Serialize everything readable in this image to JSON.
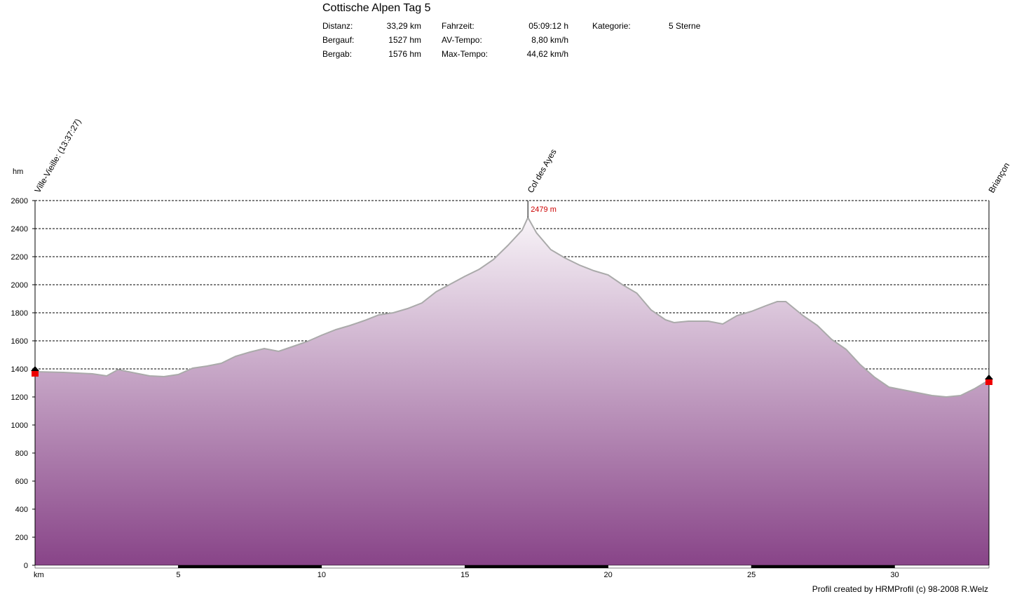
{
  "header": {
    "title": "Cottische Alpen Tag 5",
    "stats": [
      {
        "label": "Distanz:",
        "value": "33,29 km"
      },
      {
        "label": "Bergauf:",
        "value": "1527 hm"
      },
      {
        "label": "Bergab:",
        "value": "1576 hm"
      },
      {
        "label": "Fahrzeit:",
        "value": "05:09:12 h"
      },
      {
        "label": "AV-Tempo:",
        "value": "8,80 km/h"
      },
      {
        "label": "Max-Tempo:",
        "value": "44,62 km/h"
      },
      {
        "label": "Kategorie:",
        "value": "5 Sterne"
      }
    ]
  },
  "footer": {
    "credit": "Profil created by HRMProfil (c) 98-2008 R.Welz"
  },
  "chart_data": {
    "type": "area",
    "ylabel": "hm",
    "xlabel": "km",
    "xlim": [
      0,
      33.29
    ],
    "ylim": [
      0,
      2600
    ],
    "x_ticks": [
      5,
      10,
      15,
      20,
      25,
      30
    ],
    "y_ticks": [
      0,
      200,
      400,
      600,
      800,
      1000,
      1200,
      1400,
      1600,
      1800,
      2000,
      2200,
      2400,
      2600
    ],
    "grid": true,
    "fill_gradient": [
      "#f8f4f8",
      "#884488"
    ],
    "line_color": "#aaaaaa",
    "waypoints": [
      {
        "km": 0,
        "label": "Ville-Vieille: (13:37:27)"
      },
      {
        "km": 17.2,
        "label": "Col des Ayes"
      },
      {
        "km": 33.29,
        "label": "Briançon"
      }
    ],
    "peak": {
      "km": 17.2,
      "label": "2479 m"
    },
    "x": [
      0,
      1,
      2,
      2.5,
      2.9,
      3.5,
      4,
      4.5,
      5,
      5.5,
      6,
      6.5,
      7,
      7.5,
      8,
      8.5,
      9,
      9.5,
      10,
      10.5,
      11,
      11.5,
      12,
      12.5,
      13,
      13.5,
      14,
      14.5,
      15,
      15.5,
      16,
      16.5,
      17,
      17.2,
      17.5,
      18,
      18.5,
      19,
      19.5,
      20,
      20.5,
      21,
      21.5,
      22,
      22.3,
      22.8,
      23.5,
      24,
      24.5,
      25,
      25.5,
      25.9,
      26.2,
      26.8,
      27.3,
      27.8,
      28.3,
      28.8,
      29.3,
      29.8,
      30.3,
      30.8,
      31.3,
      31.8,
      32.3,
      32.8,
      33.29
    ],
    "y": [
      1380,
      1375,
      1365,
      1350,
      1395,
      1370,
      1350,
      1345,
      1360,
      1405,
      1420,
      1440,
      1490,
      1520,
      1545,
      1525,
      1560,
      1595,
      1640,
      1680,
      1710,
      1745,
      1785,
      1800,
      1830,
      1870,
      1950,
      2005,
      2060,
      2110,
      2180,
      2280,
      2390,
      2479,
      2370,
      2250,
      2190,
      2140,
      2100,
      2070,
      2000,
      1940,
      1820,
      1750,
      1730,
      1740,
      1740,
      1720,
      1780,
      1810,
      1850,
      1880,
      1880,
      1780,
      1710,
      1610,
      1540,
      1430,
      1340,
      1270,
      1250,
      1230,
      1210,
      1200,
      1210,
      1260,
      1320
    ]
  }
}
